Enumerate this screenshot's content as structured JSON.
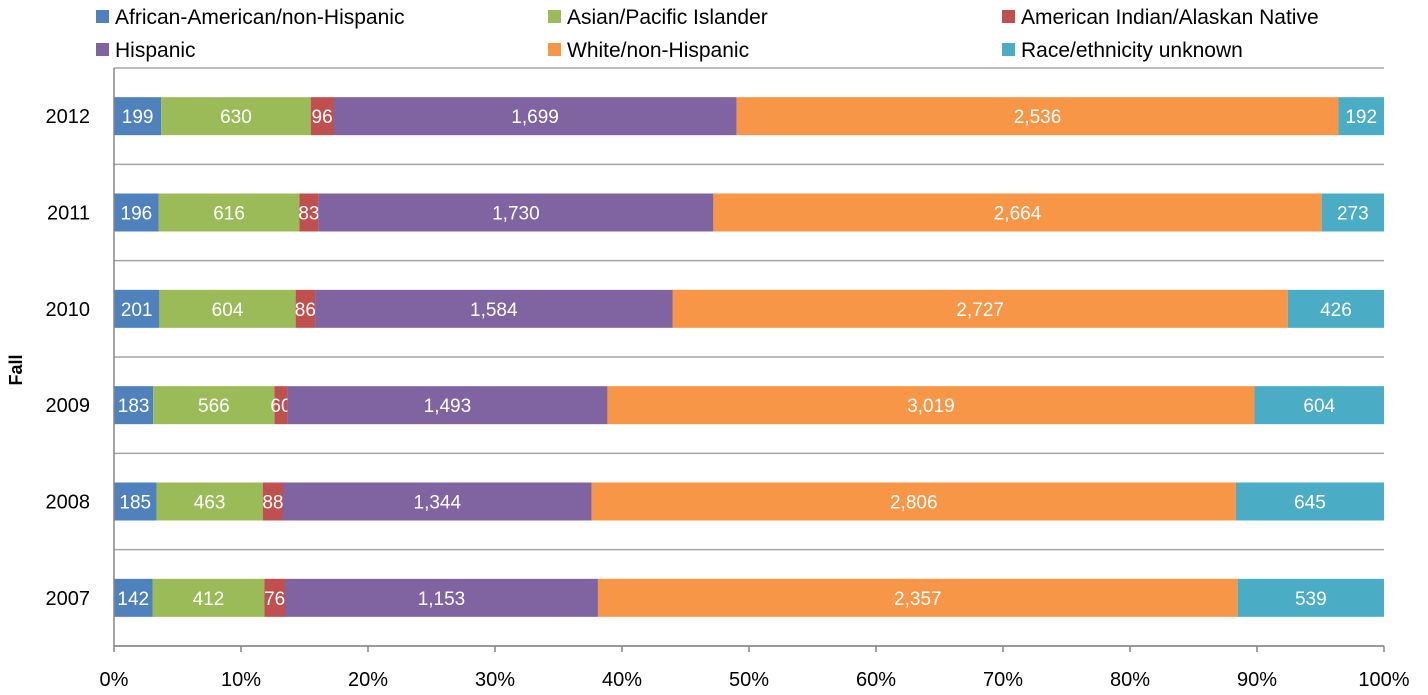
{
  "chart_data": {
    "type": "bar",
    "orientation": "horizontal",
    "stacking": "percent",
    "title": "",
    "ylabel": "Fall",
    "xlabel": "",
    "xlim": [
      0,
      100
    ],
    "x_ticks": [
      "0%",
      "10%",
      "20%",
      "30%",
      "40%",
      "50%",
      "60%",
      "70%",
      "80%",
      "90%",
      "100%"
    ],
    "grid": "horizontal-separators",
    "legend_position": "top",
    "categories": [
      "2012",
      "2011",
      "2010",
      "2009",
      "2008",
      "2007"
    ],
    "series": [
      {
        "name": "African-American/non-Hispanic",
        "color": "#4f81bd",
        "values": [
          199,
          196,
          201,
          183,
          185,
          142
        ],
        "labels": [
          "199",
          "196",
          "201",
          "183",
          "185",
          "142"
        ]
      },
      {
        "name": "Asian/Pacific Islander",
        "color": "#9bbb59",
        "values": [
          630,
          616,
          604,
          566,
          463,
          412
        ],
        "labels": [
          "630",
          "616",
          "604",
          "566",
          "463",
          "412"
        ]
      },
      {
        "name": "American Indian/Alaskan Native",
        "color": "#c0504d",
        "values": [
          96,
          83,
          86,
          60,
          88,
          76
        ],
        "labels": [
          "96",
          "83",
          "86",
          "60",
          "88",
          "76"
        ]
      },
      {
        "name": "Hispanic",
        "color": "#8064a2",
        "values": [
          1699,
          1730,
          1584,
          1493,
          1344,
          1153
        ],
        "labels": [
          "1,699",
          "1,730",
          "1,584",
          "1,493",
          "1,344",
          "1,153"
        ]
      },
      {
        "name": "White/non-Hispanic",
        "color": "#f79646",
        "values": [
          2536,
          2664,
          2727,
          3019,
          2806,
          2357
        ],
        "labels": [
          "2,536",
          "2,664",
          "2,727",
          "3,019",
          "2,806",
          "2,357"
        ]
      },
      {
        "name": "Race/ethnicity unknown",
        "color": "#4bacc6",
        "values": [
          192,
          273,
          426,
          604,
          645,
          539
        ],
        "labels": [
          "192",
          "273",
          "426",
          "604",
          "645",
          "539"
        ]
      }
    ]
  }
}
